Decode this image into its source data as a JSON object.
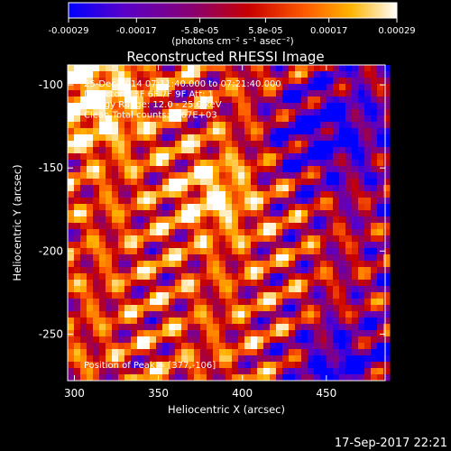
{
  "chart_data": {
    "type": "heatmap",
    "title": "Reconstructed RHESSI Image",
    "xlabel": "Heliocentric X (arcsec)",
    "ylabel": "Heliocentric Y (arcsec)",
    "xlim": [
      296,
      485
    ],
    "ylim": [
      -278,
      -88
    ],
    "x_ticks": [
      300,
      350,
      400,
      450
    ],
    "y_ticks": [
      -100,
      -150,
      -200,
      -250
    ],
    "colorbar": {
      "range": [
        -0.00029,
        0.00029
      ],
      "tick_values": [
        -0.00029,
        -0.00017,
        -5.8e-05,
        5.8e-05,
        0.00017,
        0.00029
      ],
      "tick_labels": [
        "-0.00029",
        "-0.00017",
        "-5.8e-05",
        "5.8e-05",
        "0.00017",
        "0.00029"
      ],
      "unit_label": "(photons cm⁻² s⁻¹ asec⁻²)",
      "colormap": [
        "#0000ff",
        "#5a00c8",
        "#8a0070",
        "#c80000",
        "#ff5a00",
        "#ffb400",
        "#ffffff"
      ]
    },
    "annotations": [
      "25-Dec-2014 07:11:40.000 to 07:21:40.000",
      "Detectors: 3F 6F 7F 9F  Att: 1",
      "Energy Range: 12.0 - 25.0 keV",
      "Clean      Total counts: 5.67E+03"
    ],
    "peak_label": "Position of Peak = [377,-106]",
    "peak": [
      377,
      -106
    ]
  },
  "footer_timestamp": "17-Sep-2017 22:21"
}
